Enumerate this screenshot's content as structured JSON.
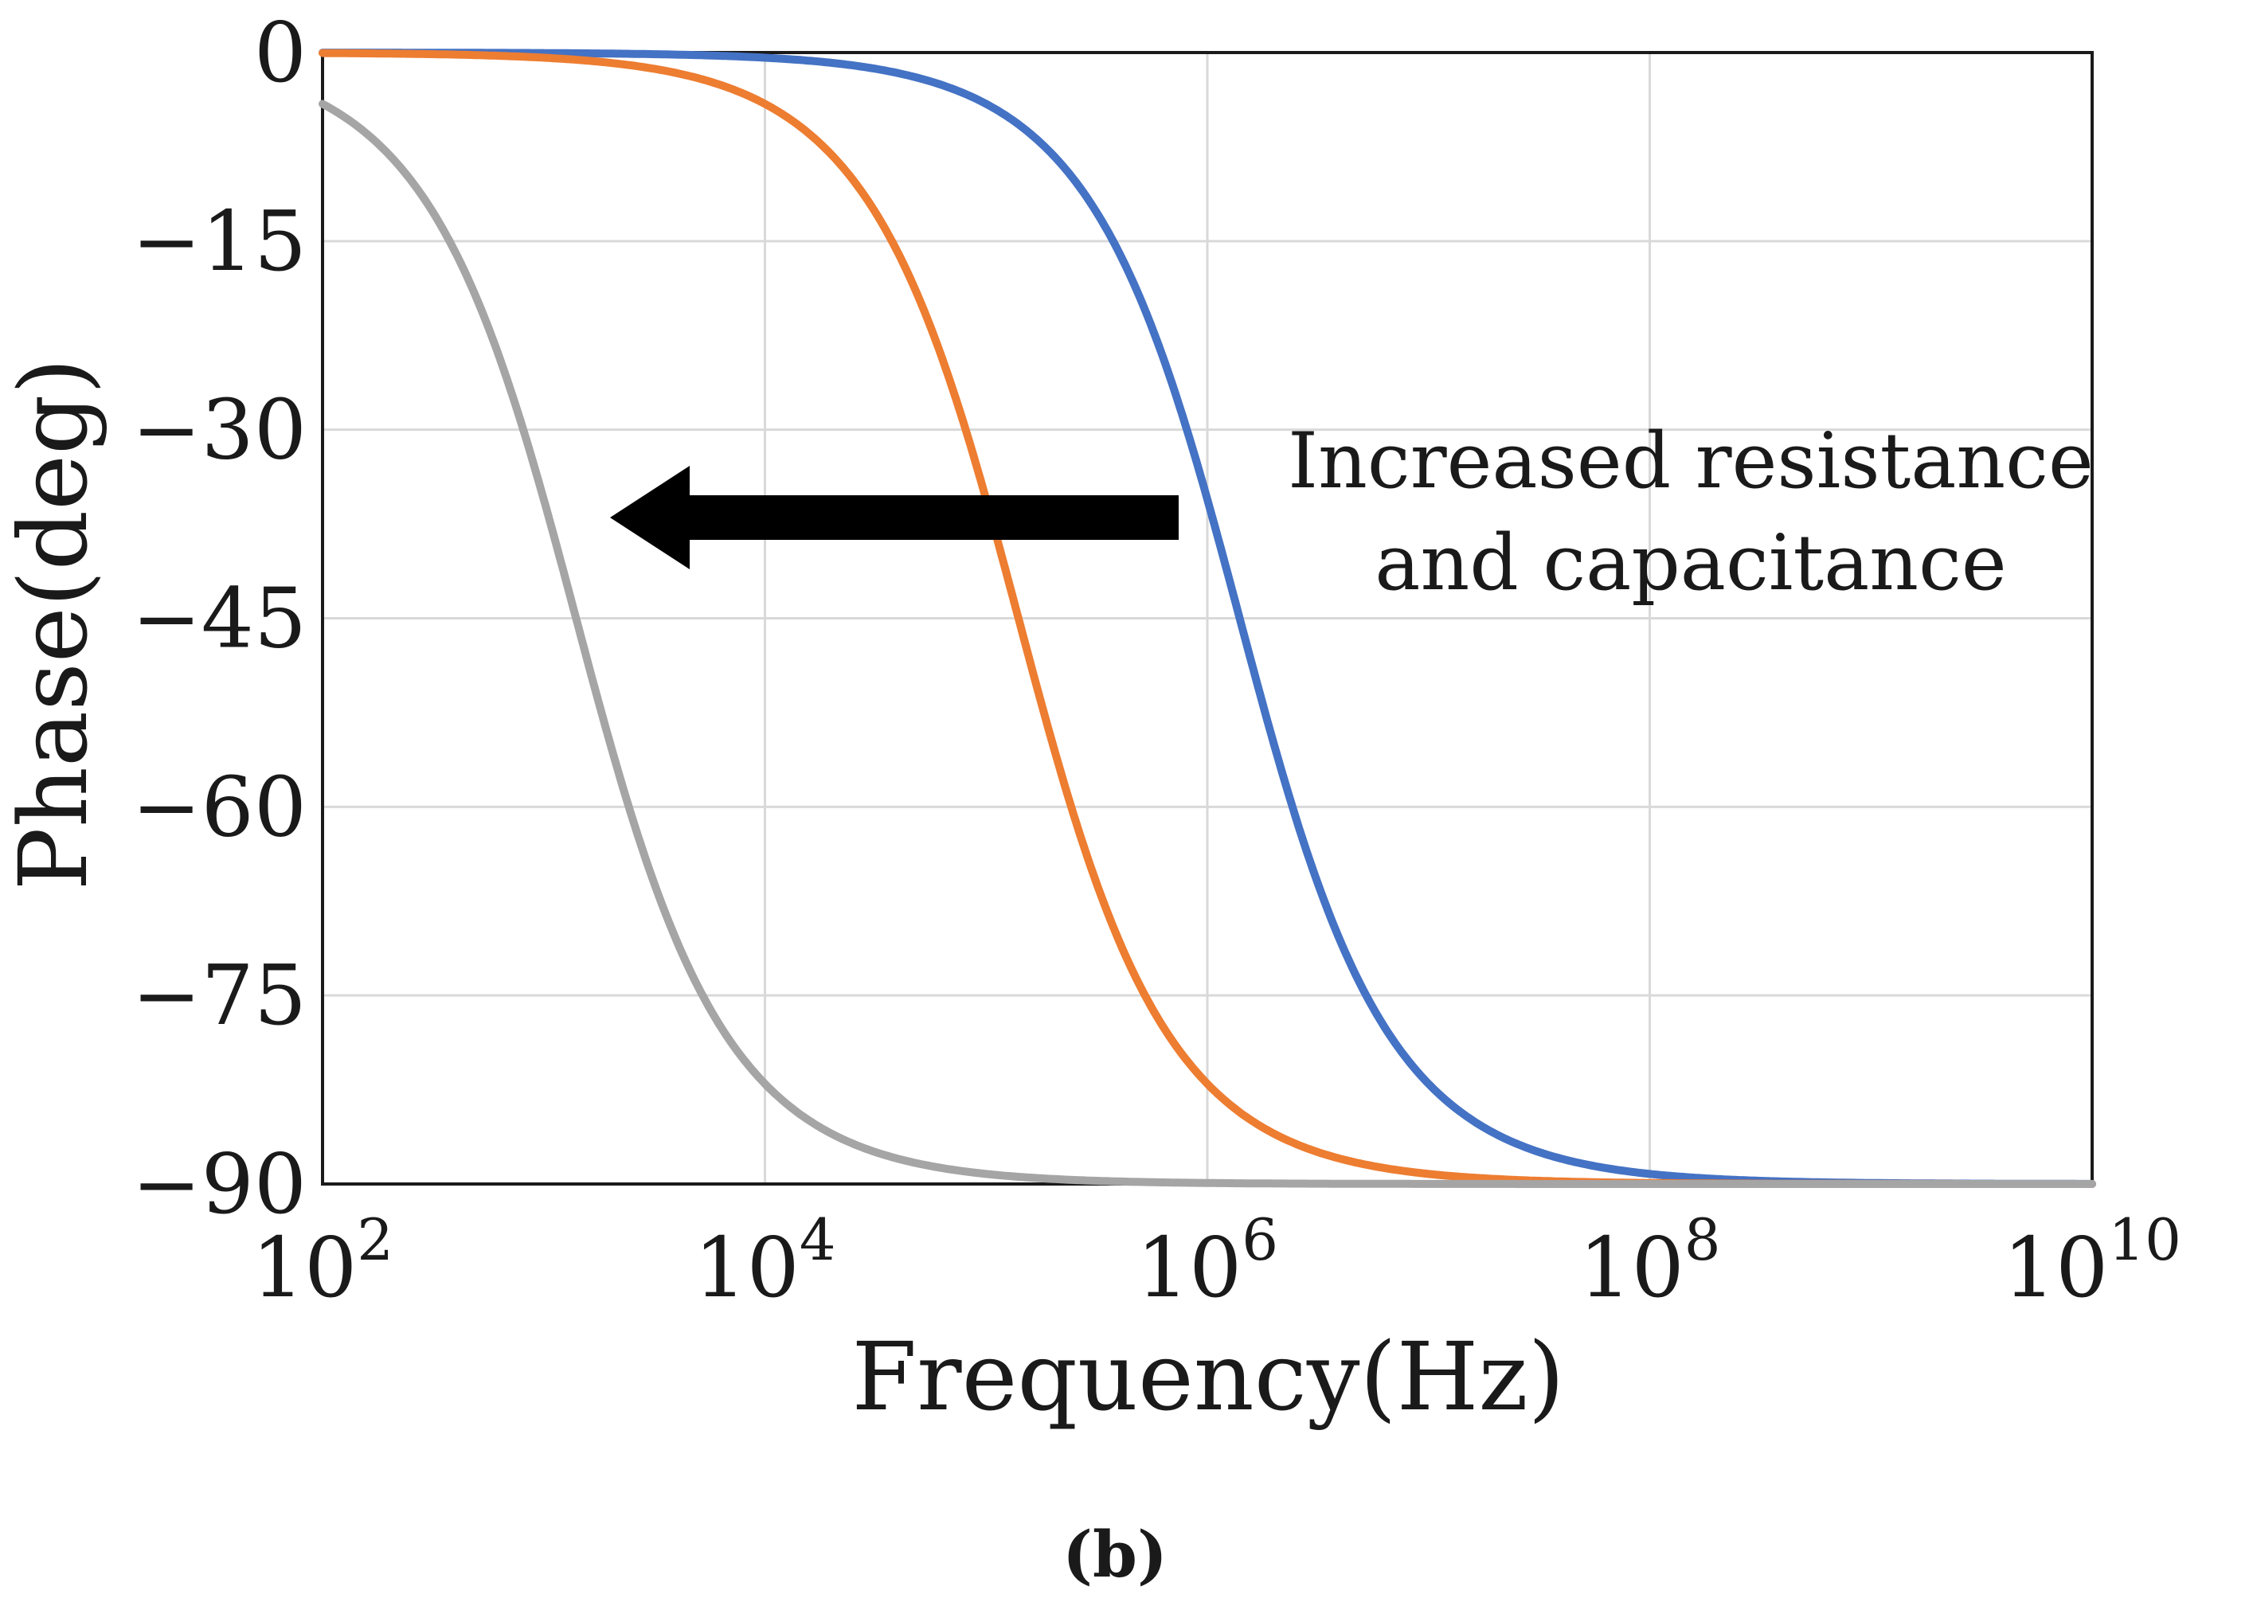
{
  "chart_data": {
    "type": "line",
    "title": "",
    "xlabel": "Frequency(Hz)",
    "ylabel": "Phase(deg)",
    "xscale": "log",
    "xlim": [
      100,
      10000000000
    ],
    "ylim": [
      -90,
      0
    ],
    "grid": true,
    "legend": "none",
    "x_ticks": [
      {
        "value": 100,
        "base": "10",
        "exp": "2"
      },
      {
        "value": 10000,
        "base": "10",
        "exp": "4"
      },
      {
        "value": 1000000,
        "base": "10",
        "exp": "6"
      },
      {
        "value": 100000000,
        "base": "10",
        "exp": "8"
      },
      {
        "value": 10000000000,
        "base": "10",
        "exp": "10"
      }
    ],
    "y_ticks": [
      {
        "value": 0,
        "label": "0"
      },
      {
        "value": -15,
        "label": "−15"
      },
      {
        "value": -30,
        "label": "−30"
      },
      {
        "value": -45,
        "label": "−45"
      },
      {
        "value": -60,
        "label": "−60"
      },
      {
        "value": -75,
        "label": "−75"
      },
      {
        "value": -90,
        "label": "−90"
      }
    ],
    "series": [
      {
        "name": "blue",
        "color": "#4472C4",
        "cutoff_hz": 1400000
      },
      {
        "name": "orange",
        "color": "#ED7D31",
        "cutoff_hz": 140000
      },
      {
        "name": "gray",
        "color": "#A5A5A5",
        "cutoff_hz": 1400
      }
    ],
    "curve_function": "phase = -atan(f / cutoff_hz) in degrees",
    "annotations": {
      "text_line1": "Increased resistance",
      "text_line2": "and capacitance",
      "arrow_direction": "left",
      "arrow_color": "#000000"
    }
  },
  "panel_label": "(b)"
}
